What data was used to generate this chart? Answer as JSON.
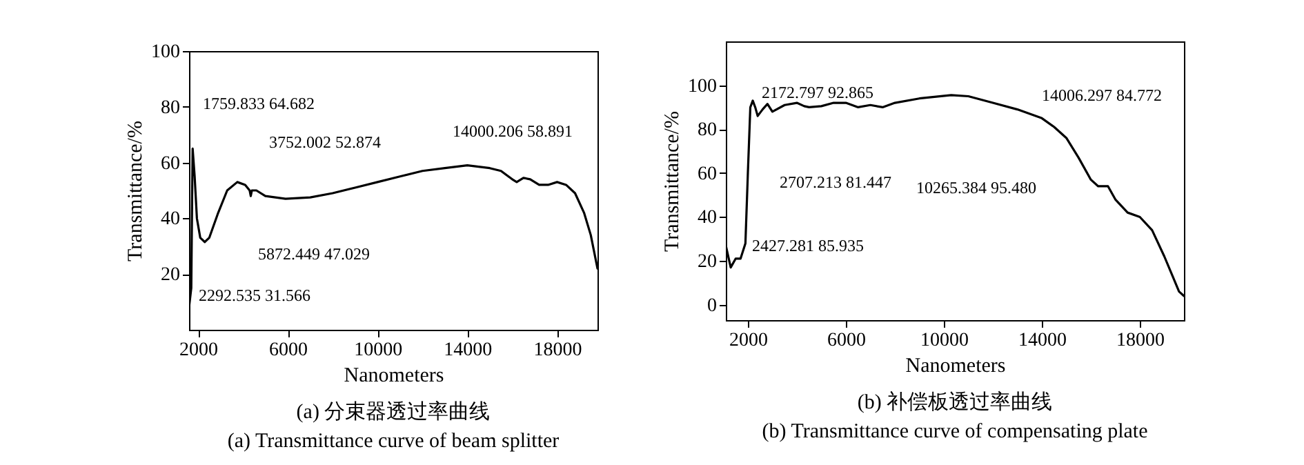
{
  "chart_data": [
    {
      "type": "line",
      "title": "(a) 分束器透过率曲线",
      "subtitle": "(a) Transmittance curve of beam splitter",
      "xlabel": "Nanometers",
      "ylabel": "Transmittance/%",
      "xlim": [
        1600,
        19800
      ],
      "ylim": [
        0,
        100
      ],
      "xticks": [
        2000,
        6000,
        10000,
        14000,
        18000
      ],
      "yticks": [
        20,
        40,
        60,
        80,
        100
      ],
      "marker": "none",
      "line_style": "solid",
      "series": [
        {
          "color": "#000000",
          "x": [
            1600,
            1700,
            1740,
            1760,
            1850,
            1950,
            2100,
            2300,
            2500,
            2900,
            3300,
            3750,
            4100,
            4300,
            4350,
            4400,
            4600,
            5000,
            5900,
            7000,
            8000,
            9000,
            10000,
            11000,
            12000,
            13000,
            14000,
            15000,
            15500,
            16000,
            16200,
            16500,
            16800,
            17200,
            17600,
            18000,
            18400,
            18800,
            19200,
            19500,
            19800
          ],
          "values": [
            8,
            15,
            50,
            65,
            55,
            40,
            33,
            31.5,
            33,
            42,
            50,
            53,
            52,
            50,
            48,
            50,
            50,
            48,
            47,
            47.5,
            49,
            51,
            53,
            55,
            57,
            58,
            59,
            58,
            57,
            54,
            53,
            54.5,
            54,
            52,
            52,
            53,
            52,
            49,
            42,
            34,
            22
          ]
        }
      ],
      "annotations": [
        "1759.833  64.682",
        "3752.002  52.874",
        "14000.206  58.891",
        "5872.449  47.029",
        "2292.535  31.566"
      ]
    },
    {
      "type": "line",
      "title": "(b) 补偿板透过率曲线",
      "subtitle": "(b) Transmittance curve of compensating plate",
      "xlabel": "Nanometers",
      "ylabel": "Transmittance/%",
      "xlim": [
        1100,
        19800
      ],
      "ylim": [
        -7,
        120
      ],
      "xticks": [
        2000,
        6000,
        10000,
        14000,
        18000
      ],
      "yticks": [
        0,
        20,
        40,
        60,
        80,
        100
      ],
      "marker": "none",
      "line_style": "solid",
      "series": [
        {
          "color": "#000000",
          "x": [
            1100,
            1300,
            1500,
            1700,
            1900,
            2000,
            2100,
            2200,
            2300,
            2400,
            2600,
            2800,
            3000,
            3500,
            4000,
            4300,
            4500,
            5000,
            5500,
            6000,
            6500,
            7000,
            7500,
            8000,
            9000,
            10300,
            11000,
            12000,
            13000,
            14000,
            14500,
            15000,
            15500,
            16000,
            16300,
            16700,
            17000,
            17500,
            18000,
            18500,
            19000,
            19300,
            19600,
            19800
          ],
          "values": [
            27,
            17,
            21,
            21,
            28,
            60,
            90,
            93,
            90,
            86,
            89,
            91.5,
            88,
            91,
            92,
            90.5,
            90,
            90.5,
            92,
            92,
            90,
            91,
            90,
            92,
            94,
            95.5,
            95,
            92,
            89,
            85,
            81,
            76,
            67,
            57,
            54,
            54,
            48,
            42,
            40,
            34,
            22,
            14,
            6,
            4
          ]
        }
      ],
      "annotations": [
        "2172.797  92.865",
        "2707.213  81.447",
        "2427.281  85.935",
        "10265.384  95.480",
        "14006.297  84.772"
      ]
    }
  ]
}
